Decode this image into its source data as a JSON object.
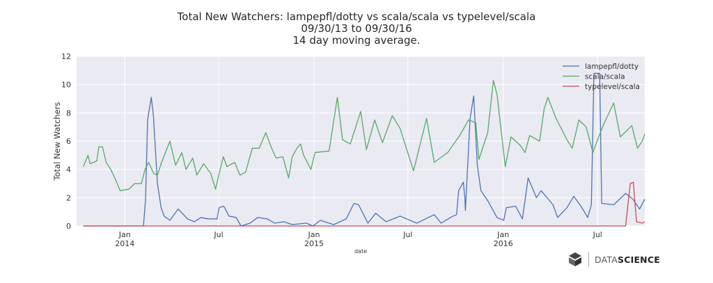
{
  "chart_data": {
    "type": "line",
    "title": [
      "Total New Watchers: lampepfl/dotty vs scala/scala vs typelevel/scala",
      "09/30/13 to 09/30/16",
      "14 day moving average."
    ],
    "xlabel": "date",
    "ylabel": "Total New Watchers",
    "xlim": [
      "2013-09-30",
      "2016-09-30"
    ],
    "ylim": [
      0,
      12
    ],
    "yticks": [
      0,
      2,
      4,
      6,
      8,
      10,
      12
    ],
    "xticks": [
      {
        "date": "2014-01-01",
        "label": "Jan",
        "sub": "2014"
      },
      {
        "date": "2014-07-01",
        "label": "Jul",
        "sub": ""
      },
      {
        "date": "2015-01-01",
        "label": "Jan",
        "sub": "2015"
      },
      {
        "date": "2015-07-01",
        "label": "Jul",
        "sub": ""
      },
      {
        "date": "2016-01-01",
        "label": "Jan",
        "sub": "2016"
      },
      {
        "date": "2016-07-01",
        "label": "Jul",
        "sub": ""
      }
    ],
    "grid": true,
    "legend_position": "top-right",
    "series": [
      {
        "name": "lampepfl/dotty",
        "color": "#4c72b0",
        "points": [
          [
            "2013-10-13",
            0
          ],
          [
            "2014-02-06",
            0
          ],
          [
            "2014-02-10",
            1.8
          ],
          [
            "2014-02-14",
            7.5
          ],
          [
            "2014-02-21",
            9.1
          ],
          [
            "2014-02-25",
            7.9
          ],
          [
            "2014-03-05",
            3.0
          ],
          [
            "2014-03-12",
            1.3
          ],
          [
            "2014-03-18",
            0.7
          ],
          [
            "2014-03-29",
            0.4
          ],
          [
            "2014-04-14",
            1.2
          ],
          [
            "2014-05-02",
            0.5
          ],
          [
            "2014-05-15",
            0.3
          ],
          [
            "2014-05-28",
            0.6
          ],
          [
            "2014-06-11",
            0.5
          ],
          [
            "2014-06-28",
            0.5
          ],
          [
            "2014-07-02",
            1.3
          ],
          [
            "2014-07-11",
            1.4
          ],
          [
            "2014-07-21",
            0.7
          ],
          [
            "2014-08-04",
            0.6
          ],
          [
            "2014-08-13",
            0.0
          ],
          [
            "2014-08-31",
            0.2
          ],
          [
            "2014-09-14",
            0.6
          ],
          [
            "2014-10-03",
            0.5
          ],
          [
            "2014-10-17",
            0.2
          ],
          [
            "2014-11-04",
            0.3
          ],
          [
            "2014-11-20",
            0.1
          ],
          [
            "2014-12-17",
            0.2
          ],
          [
            "2014-12-30",
            0.0
          ],
          [
            "2015-01-13",
            0.4
          ],
          [
            "2015-02-08",
            0.1
          ],
          [
            "2015-03-04",
            0.5
          ],
          [
            "2015-03-19",
            1.6
          ],
          [
            "2015-03-28",
            1.5
          ],
          [
            "2015-04-15",
            0.2
          ],
          [
            "2015-04-30",
            0.9
          ],
          [
            "2015-05-20",
            0.3
          ],
          [
            "2015-06-16",
            0.7
          ],
          [
            "2015-07-18",
            0.2
          ],
          [
            "2015-08-21",
            0.8
          ],
          [
            "2015-09-03",
            0.2
          ],
          [
            "2015-09-26",
            0.7
          ],
          [
            "2015-10-03",
            0.8
          ],
          [
            "2015-10-07",
            2.5
          ],
          [
            "2015-10-16",
            3.1
          ],
          [
            "2015-10-19",
            2.0
          ],
          [
            "2015-10-20",
            1.1
          ],
          [
            "2015-10-29",
            7.6
          ],
          [
            "2015-11-05",
            9.2
          ],
          [
            "2015-11-12",
            4.3
          ],
          [
            "2015-11-19",
            2.5
          ],
          [
            "2015-12-02",
            1.8
          ],
          [
            "2015-12-20",
            0.6
          ],
          [
            "2016-01-02",
            0.4
          ],
          [
            "2016-01-07",
            1.3
          ],
          [
            "2016-01-25",
            1.4
          ],
          [
            "2016-02-07",
            0.5
          ],
          [
            "2016-02-18",
            3.4
          ],
          [
            "2016-03-05",
            2.0
          ],
          [
            "2016-03-14",
            2.5
          ],
          [
            "2016-04-06",
            1.5
          ],
          [
            "2016-04-15",
            0.6
          ],
          [
            "2016-05-03",
            1.3
          ],
          [
            "2016-05-16",
            2.1
          ],
          [
            "2016-05-30",
            1.4
          ],
          [
            "2016-06-12",
            0.6
          ],
          [
            "2016-06-19",
            1.5
          ],
          [
            "2016-06-24",
            10.8
          ],
          [
            "2016-07-05",
            10.8
          ],
          [
            "2016-07-09",
            1.6
          ],
          [
            "2016-08-01",
            1.5
          ],
          [
            "2016-08-24",
            2.3
          ],
          [
            "2016-09-07",
            1.9
          ],
          [
            "2016-09-20",
            1.2
          ],
          [
            "2016-09-30",
            1.9
          ]
        ]
      },
      {
        "name": "scala/scala",
        "color": "#55a868",
        "points": [
          [
            "2013-10-13",
            4.2
          ],
          [
            "2013-10-22",
            5.0
          ],
          [
            "2013-10-26",
            4.4
          ],
          [
            "2013-11-08",
            4.6
          ],
          [
            "2013-11-12",
            5.6
          ],
          [
            "2013-11-19",
            5.6
          ],
          [
            "2013-11-26",
            4.5
          ],
          [
            "2013-12-05",
            4.0
          ],
          [
            "2013-12-15",
            3.2
          ],
          [
            "2013-12-23",
            2.5
          ],
          [
            "2014-01-09",
            2.6
          ],
          [
            "2014-01-20",
            3.0
          ],
          [
            "2014-02-02",
            3.0
          ],
          [
            "2014-02-09",
            4.0
          ],
          [
            "2014-02-16",
            4.5
          ],
          [
            "2014-02-26",
            3.7
          ],
          [
            "2014-03-05",
            3.6
          ],
          [
            "2014-03-13",
            4.5
          ],
          [
            "2014-03-29",
            6.0
          ],
          [
            "2014-04-09",
            4.3
          ],
          [
            "2014-04-21",
            5.2
          ],
          [
            "2014-04-29",
            4.0
          ],
          [
            "2014-05-12",
            4.8
          ],
          [
            "2014-05-20",
            3.6
          ],
          [
            "2014-06-02",
            4.4
          ],
          [
            "2014-06-16",
            3.7
          ],
          [
            "2014-06-25",
            2.6
          ],
          [
            "2014-07-04",
            4.0
          ],
          [
            "2014-07-10",
            4.9
          ],
          [
            "2014-07-17",
            4.2
          ],
          [
            "2014-08-01",
            4.5
          ],
          [
            "2014-08-11",
            3.6
          ],
          [
            "2014-08-22",
            3.8
          ],
          [
            "2014-09-04",
            5.5
          ],
          [
            "2014-09-17",
            5.5
          ],
          [
            "2014-09-30",
            6.6
          ],
          [
            "2014-10-10",
            5.6
          ],
          [
            "2014-10-20",
            4.8
          ],
          [
            "2014-11-02",
            4.9
          ],
          [
            "2014-11-13",
            3.4
          ],
          [
            "2014-11-20",
            4.9
          ],
          [
            "2014-11-29",
            5.5
          ],
          [
            "2014-12-06",
            5.8
          ],
          [
            "2014-12-12",
            5.0
          ],
          [
            "2014-12-26",
            4.0
          ],
          [
            "2015-01-03",
            5.2
          ],
          [
            "2015-01-30",
            5.3
          ],
          [
            "2015-02-15",
            9.1
          ],
          [
            "2015-02-25",
            6.1
          ],
          [
            "2015-03-12",
            5.8
          ],
          [
            "2015-04-01",
            8.1
          ],
          [
            "2015-04-12",
            5.4
          ],
          [
            "2015-04-28",
            7.5
          ],
          [
            "2015-05-13",
            5.9
          ],
          [
            "2015-06-01",
            7.8
          ],
          [
            "2015-06-16",
            6.9
          ],
          [
            "2015-07-12",
            3.9
          ],
          [
            "2015-08-06",
            7.6
          ],
          [
            "2015-08-21",
            4.5
          ],
          [
            "2015-09-16",
            5.2
          ],
          [
            "2015-10-09",
            6.4
          ],
          [
            "2015-10-26",
            7.5
          ],
          [
            "2015-11-09",
            7.3
          ],
          [
            "2015-11-15",
            4.7
          ],
          [
            "2015-12-02",
            6.6
          ],
          [
            "2015-12-13",
            10.3
          ],
          [
            "2015-12-20",
            9.3
          ],
          [
            "2016-01-05",
            4.2
          ],
          [
            "2016-01-16",
            6.3
          ],
          [
            "2016-02-03",
            5.7
          ],
          [
            "2016-02-12",
            5.2
          ],
          [
            "2016-02-21",
            6.4
          ],
          [
            "2016-03-11",
            6.0
          ],
          [
            "2016-03-20",
            8.3
          ],
          [
            "2016-03-27",
            9.1
          ],
          [
            "2016-04-12",
            7.6
          ],
          [
            "2016-05-03",
            6.1
          ],
          [
            "2016-05-13",
            5.5
          ],
          [
            "2016-05-26",
            7.5
          ],
          [
            "2016-06-09",
            7.0
          ],
          [
            "2016-06-22",
            5.2
          ],
          [
            "2016-07-02",
            6.2
          ],
          [
            "2016-07-14",
            7.3
          ],
          [
            "2016-08-01",
            8.7
          ],
          [
            "2016-08-14",
            6.3
          ],
          [
            "2016-09-05",
            7.1
          ],
          [
            "2016-09-16",
            5.5
          ],
          [
            "2016-09-25",
            6.0
          ],
          [
            "2016-09-30",
            6.5
          ]
        ]
      },
      {
        "name": "typelevel/scala",
        "color": "#c44e52",
        "points": [
          [
            "2013-10-13",
            0
          ],
          [
            "2016-08-24",
            0
          ],
          [
            "2016-09-02",
            3.0
          ],
          [
            "2016-09-08",
            3.1
          ],
          [
            "2016-09-14",
            0.3
          ],
          [
            "2016-09-25",
            0.2
          ],
          [
            "2016-09-30",
            0.3
          ]
        ]
      }
    ]
  },
  "branding": {
    "logo_text_light": "DATA",
    "logo_text_bold": "SCIENCE",
    "logo_icon": "stacked-cube-icon"
  }
}
